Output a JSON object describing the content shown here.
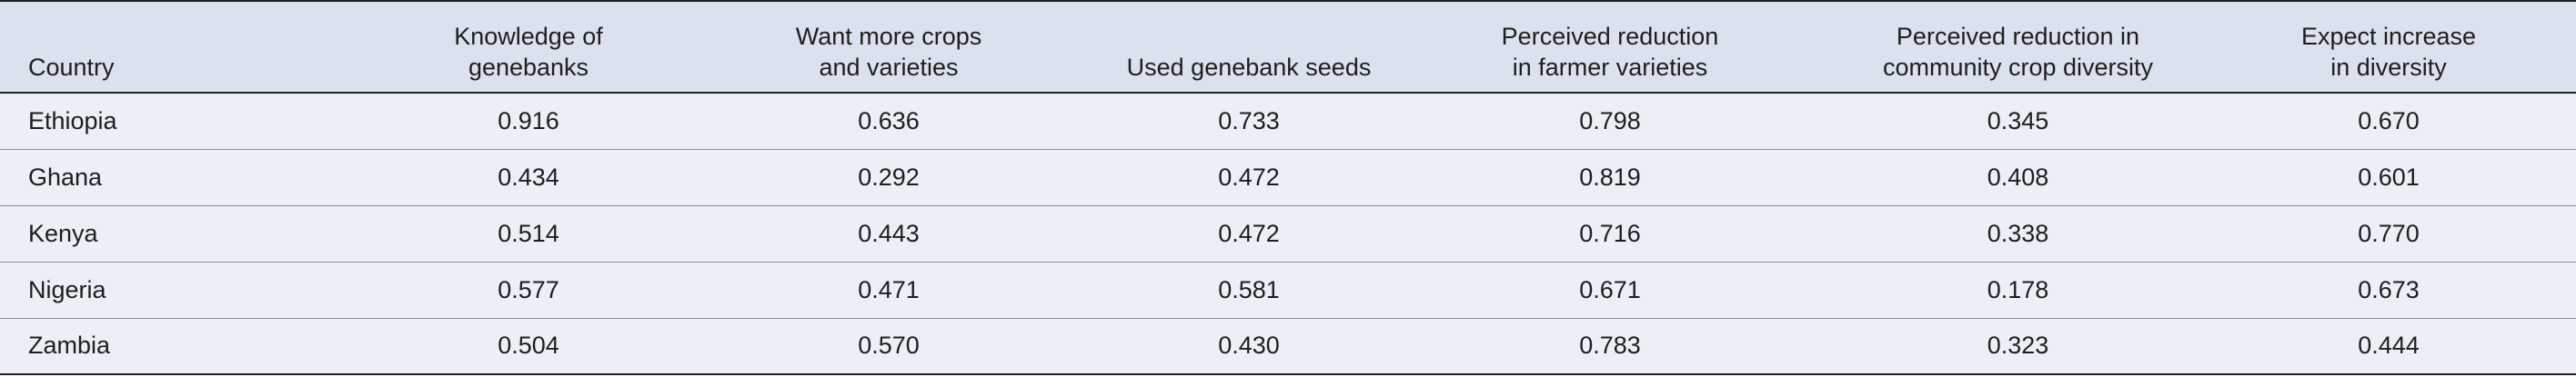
{
  "table": {
    "header": [
      "Country",
      "Knowledge of\ngenebanks",
      "Want more crops\nand varieties",
      "Used genebank seeds",
      "Perceived reduction\nin farmer varieties",
      "Perceived reduction in\ncommunity crop diversity",
      "Expect increase\nin diversity"
    ],
    "rows": [
      [
        "Ethiopia",
        "0.916",
        "0.636",
        "0.733",
        "0.798",
        "0.345",
        "0.670"
      ],
      [
        "Ghana",
        "0.434",
        "0.292",
        "0.472",
        "0.819",
        "0.408",
        "0.601"
      ],
      [
        "Kenya",
        "0.514",
        "0.443",
        "0.472",
        "0.716",
        "0.338",
        "0.770"
      ],
      [
        "Nigeria",
        "0.577",
        "0.471",
        "0.581",
        "0.671",
        "0.178",
        "0.673"
      ],
      [
        "Zambia",
        "0.504",
        "0.570",
        "0.430",
        "0.783",
        "0.323",
        "0.444"
      ]
    ]
  }
}
